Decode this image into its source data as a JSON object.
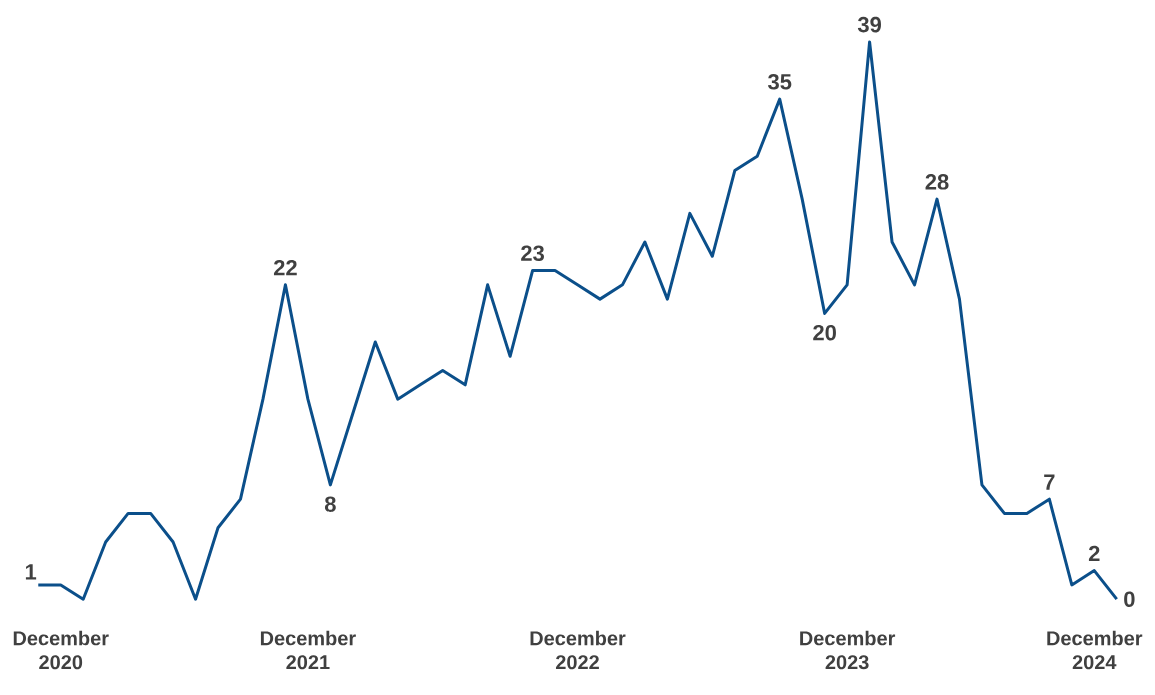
{
  "chart_data": {
    "type": "line",
    "categories": [
      null,
      "December 2020",
      null,
      null,
      null,
      null,
      null,
      null,
      null,
      null,
      null,
      null,
      "December 2021",
      null,
      null,
      null,
      null,
      null,
      null,
      null,
      null,
      null,
      null,
      null,
      "December 2022",
      null,
      null,
      null,
      null,
      null,
      null,
      null,
      null,
      null,
      null,
      null,
      "December 2023",
      null,
      null,
      null,
      null,
      null,
      null,
      null,
      null,
      null,
      null,
      "December 2024",
      null
    ],
    "series": [
      {
        "color": "#0b4f8a",
        "values": [
          1,
          1,
          0,
          4,
          6,
          6,
          4,
          0,
          5,
          7,
          14,
          22,
          14,
          8,
          13,
          18,
          14,
          15,
          16,
          15,
          22,
          17,
          23,
          23,
          22,
          21,
          22,
          25,
          21,
          27,
          24,
          30,
          31,
          35,
          28,
          20,
          22,
          39,
          25,
          22,
          28,
          21,
          8,
          6,
          6,
          7,
          1,
          2,
          0
        ],
        "value_labels": [
          "1",
          null,
          null,
          null,
          null,
          null,
          null,
          null,
          null,
          null,
          null,
          "22",
          null,
          "8",
          null,
          null,
          null,
          null,
          null,
          null,
          null,
          null,
          "23",
          null,
          null,
          null,
          null,
          null,
          null,
          null,
          null,
          null,
          null,
          "35",
          null,
          "20",
          null,
          "39",
          null,
          null,
          "28",
          null,
          null,
          null,
          null,
          "7",
          null,
          "2",
          "0"
        ]
      }
    ],
    "marker": "none",
    "line_style": "solid"
  }
}
